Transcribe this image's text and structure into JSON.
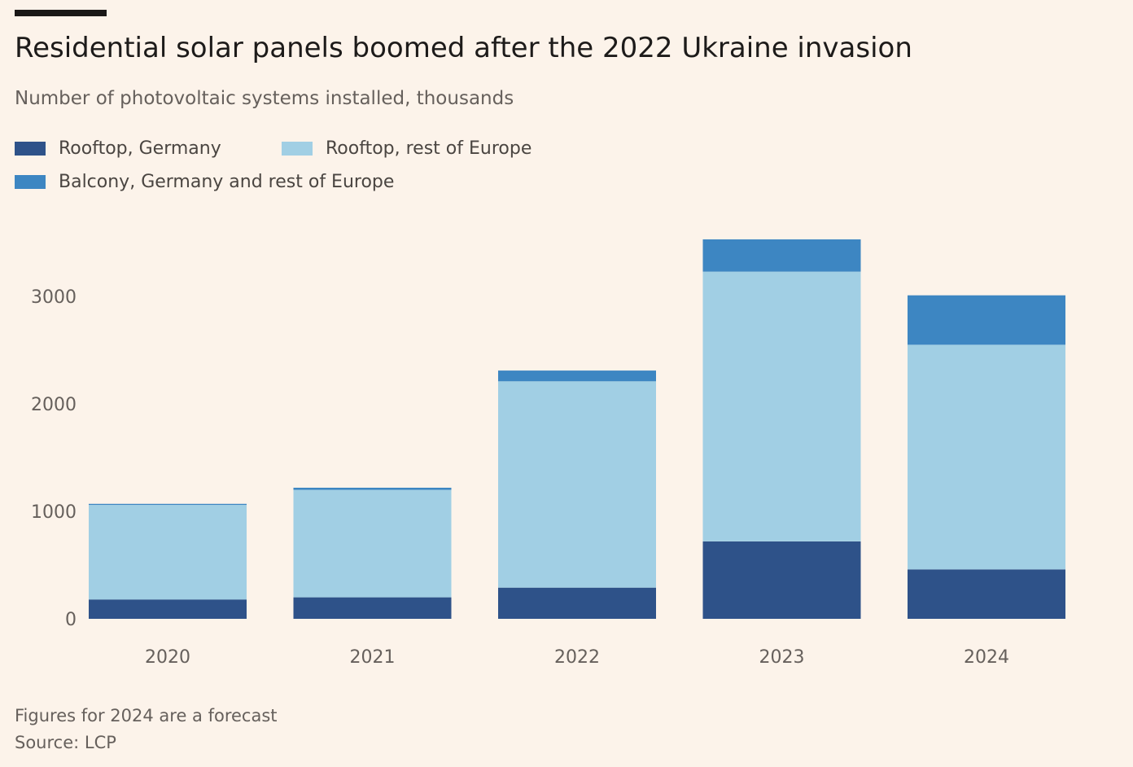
{
  "header": {
    "title": "Residential solar panels boomed after the 2022 Ukraine invasion",
    "subtitle": "Number of photovoltaic systems installed, thousands"
  },
  "legend": [
    {
      "label": "Rooftop, Germany",
      "color": "#2e5289"
    },
    {
      "label": "Rooftop, rest of Europe",
      "color": "#a1cfe4"
    },
    {
      "label": "Balcony, Germany and rest of Europe",
      "color": "#3d86c2"
    }
  ],
  "footer": {
    "note": "Figures for 2024 are a forecast",
    "source": "Source: LCP"
  },
  "chart_data": {
    "type": "bar",
    "stacked": true,
    "title": "Residential solar panels boomed after the 2022 Ukraine invasion",
    "subtitle": "Number of photovoltaic systems installed, thousands",
    "categories": [
      "2020",
      "2021",
      "2022",
      "2023",
      "2024"
    ],
    "series": [
      {
        "name": "Rooftop, Germany",
        "color": "#2e5289",
        "values": [
          180,
          200,
          290,
          720,
          460
        ]
      },
      {
        "name": "Rooftop, rest of Europe",
        "color": "#a1cfe4",
        "values": [
          880,
          1000,
          1920,
          2510,
          2090
        ]
      },
      {
        "name": "Balcony, Germany and rest of Europe",
        "color": "#3d86c2",
        "values": [
          10,
          20,
          100,
          300,
          460
        ]
      }
    ],
    "yticks": [
      0,
      1000,
      2000,
      3000
    ],
    "ylim": [
      0,
      3600
    ],
    "grid": false,
    "legend_position": "top-left"
  }
}
